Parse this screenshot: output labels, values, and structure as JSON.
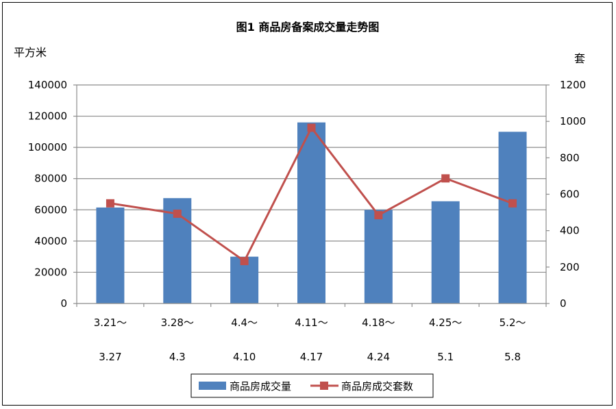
{
  "chart_data": {
    "type": "bar",
    "title": "图1    商品房备案成交量走势图",
    "y_left_unit": "平方米",
    "y_right_unit": "套",
    "categories": [
      [
        "3.21～",
        "3.27"
      ],
      [
        "3.28～",
        "4.3"
      ],
      [
        "4.4～",
        "4.10"
      ],
      [
        "4.11～",
        "4.17"
      ],
      [
        "4.18～",
        "4.24"
      ],
      [
        "4.25～",
        "5.1"
      ],
      [
        "5.2～",
        "5.8"
      ]
    ],
    "series": [
      {
        "name": "商品房成交量",
        "type": "bar",
        "axis": "left",
        "color": "#4F81BD",
        "values": [
          61500,
          67500,
          30000,
          116000,
          60000,
          65500,
          110000
        ]
      },
      {
        "name": "商品房成交套数",
        "type": "line",
        "axis": "right",
        "color": "#C0504D",
        "values": [
          550,
          493,
          233,
          965,
          485,
          687,
          550
        ]
      }
    ],
    "ylim_left": [
      0,
      140000
    ],
    "yticks_left": [
      "0",
      "20000",
      "40000",
      "60000",
      "80000",
      "100000",
      "120000",
      "140000"
    ],
    "ylim_right": [
      0,
      1200
    ],
    "yticks_right": [
      "0",
      "200",
      "400",
      "600",
      "800",
      "1000",
      "1200"
    ],
    "grid": true,
    "legend_position": "bottom"
  }
}
